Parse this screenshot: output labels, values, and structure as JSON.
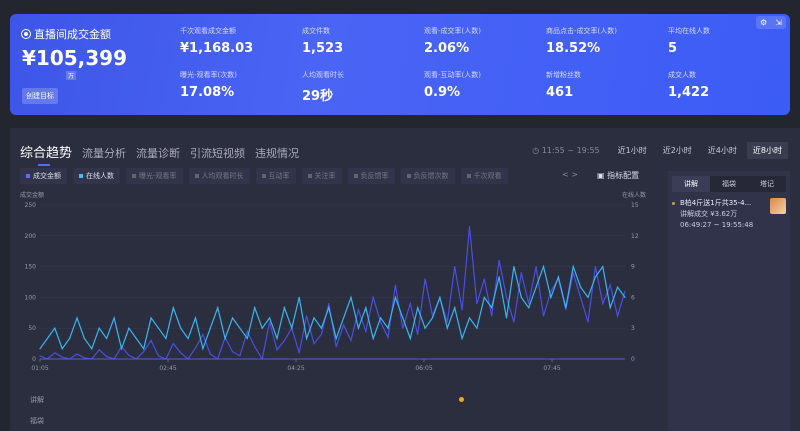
{
  "hero": {
    "title": "直播间成交金额",
    "value": "¥105,399",
    "unit": "万",
    "goal_button": "创建目标",
    "metrics": [
      {
        "label": "千次观看成交金额",
        "value": "¥1,168.03"
      },
      {
        "label": "成交件数",
        "value": "1,523"
      },
      {
        "label": "观看-成交率(人数)",
        "value": "2.06%"
      },
      {
        "label": "商品点击-成交率(人数)",
        "value": "18.52%"
      },
      {
        "label": "平均在线人数",
        "value": "5"
      },
      {
        "label": "曝光-观看率(次数)",
        "value": "17.08%"
      },
      {
        "label": "人均观看时长",
        "value": "29秒"
      },
      {
        "label": "观看-互动率(人数)",
        "value": "0.9%"
      },
      {
        "label": "新增粉丝数",
        "value": "461"
      },
      {
        "label": "成交人数",
        "value": "1,422"
      }
    ]
  },
  "tabs": [
    "综合趋势",
    "流量分析",
    "流量诊断",
    "引流短视频",
    "违规情况"
  ],
  "time_range": "11:55 ~ 19:55",
  "range_buttons": [
    "近1小时",
    "近2小时",
    "近4小时",
    "近8小时"
  ],
  "range_selected": "近8小时",
  "chips": [
    {
      "label": "成交金额",
      "on": true,
      "color": "#5b6cff"
    },
    {
      "label": "在线人数",
      "on": true,
      "color": "#3ec0f0"
    },
    {
      "label": "曝光-观看率",
      "on": false
    },
    {
      "label": "人均观看时长",
      "on": false
    },
    {
      "label": "互动率",
      "on": false
    },
    {
      "label": "关注率",
      "on": false
    },
    {
      "label": "负反馈率",
      "on": false
    },
    {
      "label": "负反馈次数",
      "on": false
    },
    {
      "label": "千次观看",
      "on": false
    }
  ],
  "config_label": "指标配置",
  "nav_label": "< >",
  "side": {
    "tabs": [
      "讲解",
      "福袋",
      "塔记"
    ],
    "item": {
      "title": "B柏4斤送1斤共35-4...",
      "sub": "讲解成交 ¥3.62万",
      "time": "06:49:27 ~ 19:55:48"
    }
  },
  "lanes": [
    "讲解",
    "福袋"
  ],
  "chart_data": {
    "type": "line",
    "left_axis_label": "成交金额",
    "right_axis_label": "在线人数",
    "yticks_left": [
      0,
      50,
      100,
      150,
      200,
      250
    ],
    "ylim_left": [
      0,
      250
    ],
    "yticks_right": [
      0,
      3,
      6,
      9,
      12,
      15
    ],
    "ylim_right": [
      0,
      15
    ],
    "xticks": [
      "01:05",
      "02:45",
      "04:25",
      "06:05",
      "07:45"
    ],
    "series": [
      {
        "name": "成交金额",
        "axis": "left",
        "color": "#4b4fe0",
        "values": [
          5,
          0,
          10,
          3,
          0,
          8,
          2,
          0,
          15,
          4,
          0,
          20,
          6,
          0,
          12,
          30,
          5,
          0,
          25,
          10,
          0,
          18,
          40,
          8,
          0,
          35,
          12,
          5,
          45,
          20,
          0,
          60,
          15,
          30,
          50,
          10,
          70,
          25,
          40,
          90,
          20,
          55,
          30,
          80,
          45,
          100,
          60,
          35,
          120,
          50,
          90,
          40,
          130,
          70,
          100,
          60,
          150,
          80,
          215,
          90,
          130,
          70,
          160,
          100,
          60,
          140,
          90,
          150,
          70,
          110,
          130,
          80,
          140,
          100,
          60,
          150,
          90,
          120,
          70,
          110
        ]
      },
      {
        "name": "在线人数",
        "axis": "right",
        "color": "#38b6f0",
        "values": [
          1,
          2,
          3,
          1,
          2,
          4,
          2,
          1,
          3,
          2,
          4,
          1,
          3,
          2,
          1,
          4,
          3,
          2,
          5,
          3,
          2,
          4,
          1,
          3,
          5,
          2,
          4,
          3,
          2,
          5,
          3,
          4,
          2,
          5,
          3,
          6,
          2,
          4,
          3,
          5,
          2,
          4,
          6,
          3,
          5,
          2,
          4,
          3,
          6,
          4,
          2,
          5,
          3,
          4,
          6,
          3,
          5,
          2,
          4,
          3,
          6,
          5,
          8,
          4,
          9,
          6,
          5,
          7,
          9,
          6,
          8,
          5,
          9,
          7,
          6,
          8,
          9,
          5,
          7,
          6
        ]
      }
    ]
  }
}
